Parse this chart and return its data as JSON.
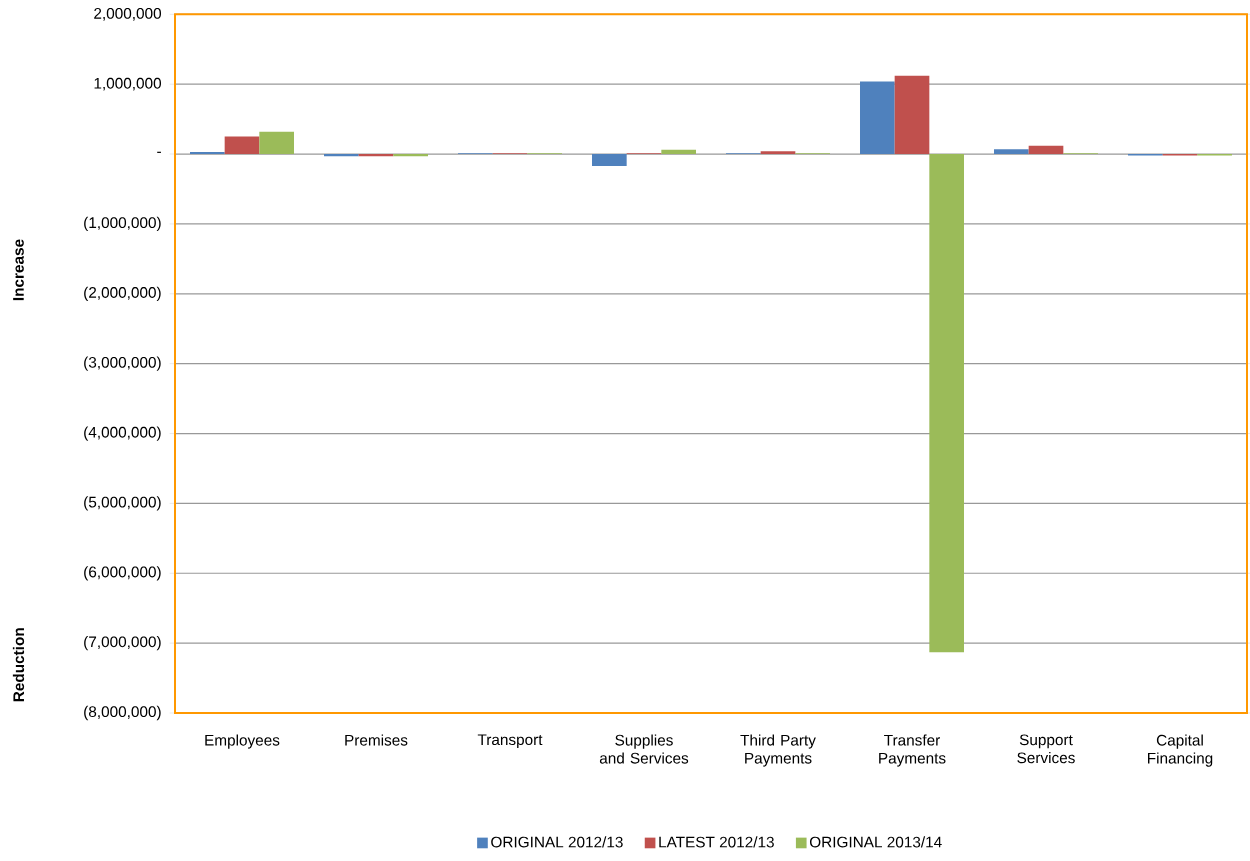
{
  "chart_data": {
    "type": "bar",
    "ylabel": "Increase",
    "annotations": [
      "Reduction"
    ],
    "categories": [
      "Employees",
      "Premises",
      "Transport",
      "Supplies and Services",
      "Third Party Payments",
      "Transfer Payments",
      "Support Services",
      "Capital Financing"
    ],
    "series": [
      {
        "name": "ORIGINAL 2012/13",
        "color": "#4f81bd",
        "values": [
          30000,
          -30000,
          10000,
          -170000,
          10000,
          1040000,
          70000,
          -20000
        ]
      },
      {
        "name": "LATEST 2012/13",
        "color": "#c0504d",
        "values": [
          250000,
          -30000,
          10000,
          10000,
          40000,
          1120000,
          120000,
          -20000
        ]
      },
      {
        "name": "ORIGINAL 2013/14",
        "color": "#9bbb59",
        "values": [
          320000,
          -30000,
          10000,
          60000,
          10000,
          -7130000,
          10000,
          -20000
        ]
      }
    ],
    "ylim": [
      -8000000,
      2000000
    ],
    "yticks": [
      {
        "value": 2000000,
        "label": "2,000,000"
      },
      {
        "value": 1000000,
        "label": "1,000,000"
      },
      {
        "value": 0,
        "label": "-"
      },
      {
        "value": -1000000,
        "label": "(1,000,000)"
      },
      {
        "value": -2000000,
        "label": "(2,000,000)"
      },
      {
        "value": -3000000,
        "label": "(3,000,000)"
      },
      {
        "value": -4000000,
        "label": "(4,000,000)"
      },
      {
        "value": -5000000,
        "label": "(5,000,000)"
      },
      {
        "value": -6000000,
        "label": "(6,000,000)"
      },
      {
        "value": -7000000,
        "label": "(7,000,000)"
      },
      {
        "value": -8000000,
        "label": "(8,000,000)"
      }
    ],
    "grid": "y",
    "legend": "bottom"
  }
}
